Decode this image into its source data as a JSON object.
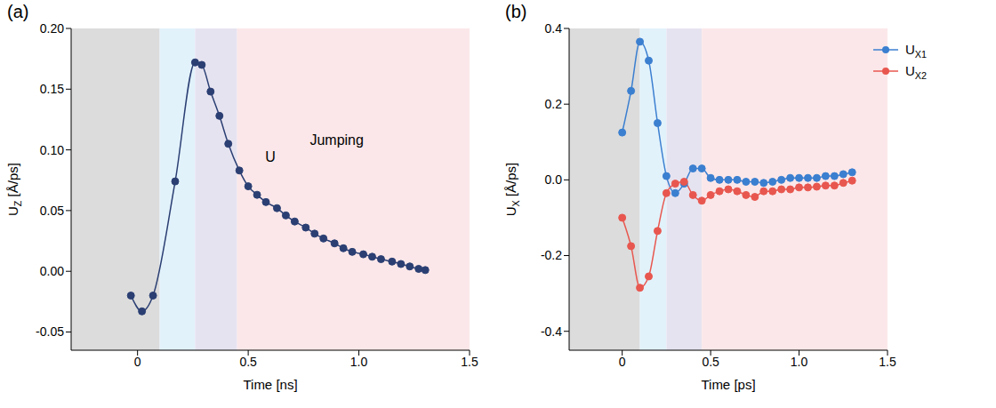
{
  "chart_data": [
    {
      "type": "line",
      "panel_label": "(a)",
      "x_label": "Time [ns]",
      "y_label": "UZ [Å/ps]",
      "xlim": [
        -0.3,
        1.5
      ],
      "xticks": [
        0,
        0.5,
        {
          "value": 1,
          "label": "1.0"
        },
        1.5
      ],
      "ylim": [
        -0.065,
        0.2
      ],
      "yticks": [
        {
          "value": -0.05,
          "label": "-0.05"
        },
        {
          "value": 0,
          "label": "0.00"
        },
        0.05,
        {
          "value": 0.1,
          "label": "0.10"
        },
        0.15,
        {
          "value": 0.2,
          "label": "0.20"
        }
      ],
      "grid": false,
      "spans": [
        {
          "x": [
            -0.3,
            0.1
          ],
          "color": "#dcdcdc"
        },
        {
          "x": [
            0.1,
            0.26
          ],
          "color": "#e2f2fb"
        },
        {
          "x": [
            0.26,
            0.45
          ],
          "color": "#e6e3f0"
        },
        {
          "x": [
            0.45,
            1.5
          ],
          "color": "#fbe7e9"
        }
      ],
      "annotations": [
        {
          "text": "Jumping",
          "x": 0.9,
          "y": 0.108
        },
        {
          "text": "U",
          "x": 0.6,
          "y": 0.094
        }
      ],
      "x": [
        -0.03,
        0.02,
        0.07,
        0.17,
        0.26,
        0.29,
        0.33,
        0.37,
        0.41,
        0.46,
        0.5,
        0.54,
        0.58,
        0.63,
        0.67,
        0.71,
        0.76,
        0.8,
        0.84,
        0.89,
        0.93,
        0.97,
        1.02,
        1.06,
        1.1,
        1.15,
        1.19,
        1.23,
        1.27,
        1.3
      ],
      "series": [
        {
          "name": "UZ",
          "color": "#2b3f73",
          "marker": "circle",
          "values": [
            -0.02,
            -0.033,
            -0.02,
            0.074,
            0.172,
            0.17,
            0.148,
            0.128,
            0.105,
            0.083,
            0.07,
            0.063,
            0.057,
            0.052,
            0.046,
            0.041,
            0.036,
            0.031,
            0.027,
            0.023,
            0.019,
            0.016,
            0.014,
            0.012,
            0.01,
            0.008,
            0.006,
            0.004,
            0.002,
            0.001
          ]
        }
      ]
    },
    {
      "type": "line",
      "panel_label": "(b)",
      "x_label": "Time [ps]",
      "y_label": "UX [Å/ps]",
      "xlim": [
        -0.3,
        1.5
      ],
      "xticks": [
        0,
        0.5,
        {
          "value": 1,
          "label": "1.0"
        },
        1.5
      ],
      "ylim": [
        -0.45,
        0.4
      ],
      "yticks": [
        -0.4,
        -0.2,
        {
          "value": 0,
          "label": "0.0"
        },
        0.2,
        0.4
      ],
      "grid": false,
      "legend": "top-right",
      "spans": [
        {
          "x": [
            -0.3,
            0.1
          ],
          "color": "#dcdcdc"
        },
        {
          "x": [
            0.1,
            0.25
          ],
          "color": "#e2f2fb"
        },
        {
          "x": [
            0.25,
            0.45
          ],
          "color": "#e6e3f0"
        },
        {
          "x": [
            0.45,
            1.5
          ],
          "color": "#fbe7e9"
        }
      ],
      "x": [
        0,
        0.05,
        0.1,
        0.15,
        0.2,
        0.25,
        0.3,
        0.35,
        0.4,
        0.45,
        0.5,
        0.55,
        0.6,
        0.65,
        0.7,
        0.75,
        0.8,
        0.85,
        0.9,
        0.95,
        1.0,
        1.05,
        1.1,
        1.15,
        1.2,
        1.25,
        1.3
      ],
      "series": [
        {
          "name": "UX1",
          "color": "#3b7fd0",
          "marker": "circle",
          "values": [
            0.125,
            0.235,
            0.365,
            0.315,
            0.15,
            0.01,
            -0.035,
            -0.01,
            0.03,
            0.03,
            0.005,
            0,
            0,
            0,
            -0.005,
            -0.005,
            -0.008,
            -0.005,
            0,
            0.005,
            0.005,
            0.005,
            0.005,
            0.01,
            0.01,
            0.015,
            0.02
          ]
        },
        {
          "name": "UX2",
          "color": "#e8574f",
          "marker": "circle",
          "values": [
            -0.1,
            -0.175,
            -0.285,
            -0.255,
            -0.135,
            -0.035,
            -0.01,
            -0.005,
            -0.04,
            -0.055,
            -0.04,
            -0.03,
            -0.025,
            -0.03,
            -0.04,
            -0.045,
            -0.03,
            -0.03,
            -0.025,
            -0.025,
            -0.02,
            -0.02,
            -0.018,
            -0.015,
            -0.015,
            -0.008,
            -0.002
          ]
        }
      ]
    }
  ]
}
